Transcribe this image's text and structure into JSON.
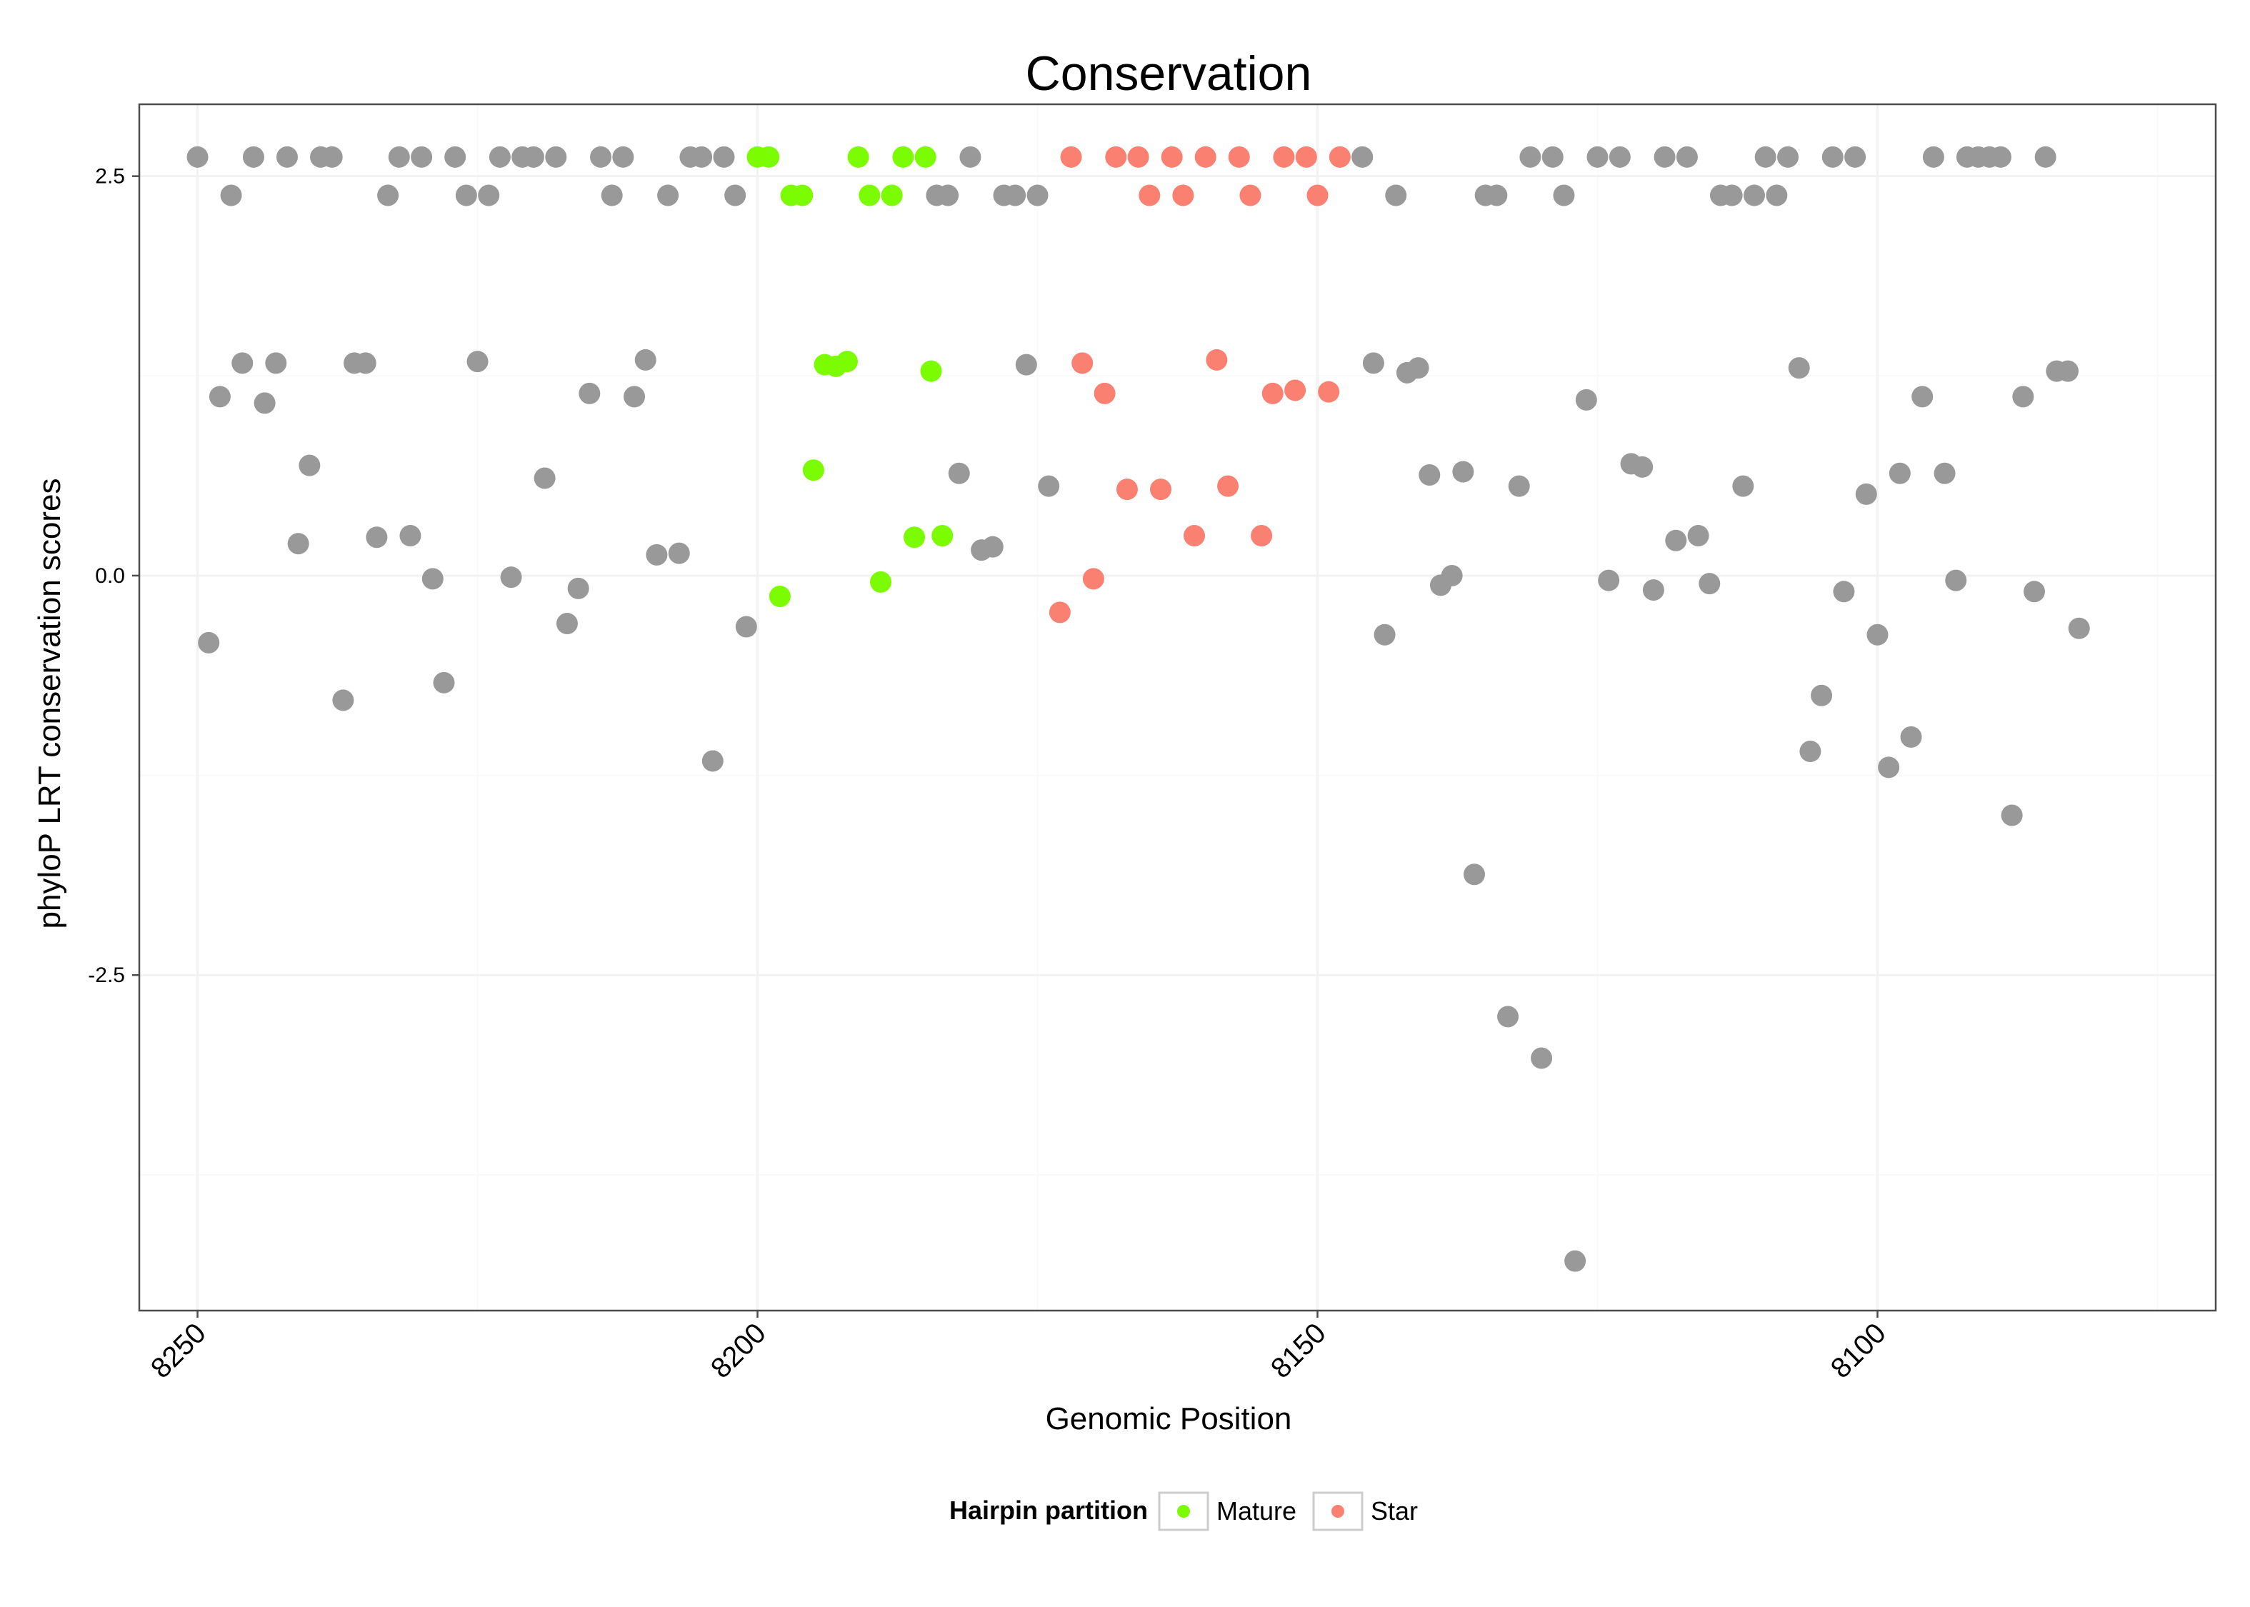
{
  "chart_data": {
    "type": "scatter",
    "title": "Conservation",
    "xlabel": "Genomic Position",
    "ylabel": "phyloP LRT conservation scores",
    "x_reversed": true,
    "xlim": [
      8255.2,
      8069.8
    ],
    "ylim": [
      -4.6,
      2.95
    ],
    "x_ticks": [
      8250,
      8200,
      8150,
      8100
    ],
    "x_tick_labels": [
      "8250",
      "8200",
      "8150",
      "8100"
    ],
    "y_ticks": [
      2.5,
      0.0,
      -2.5
    ],
    "y_tick_labels": [
      "2.5",
      "0.0",
      "-2.5"
    ],
    "grid": true,
    "theme": "bw",
    "legend": {
      "title": "Hairpin partition",
      "position": "bottom",
      "entries": [
        {
          "label": "Mature",
          "color": "#7CFC00"
        },
        {
          "label": "Star",
          "color": "#FA8072"
        }
      ]
    },
    "other_color": "#999999",
    "series": [
      {
        "name": "",
        "group": "other",
        "color": "#999999",
        "points": [
          [
            8250,
            2.62
          ],
          [
            8249,
            -0.42
          ],
          [
            8248,
            1.12
          ],
          [
            8247,
            2.38
          ],
          [
            8246,
            1.33
          ],
          [
            8245,
            2.62
          ],
          [
            8244,
            1.08
          ],
          [
            8243,
            1.33
          ],
          [
            8242,
            2.62
          ],
          [
            8241,
            0.2
          ],
          [
            8240,
            0.69
          ],
          [
            8239,
            2.62
          ],
          [
            8238,
            2.62
          ],
          [
            8237,
            -0.78
          ],
          [
            8236,
            1.33
          ],
          [
            8235,
            1.33
          ],
          [
            8234,
            0.24
          ],
          [
            8233,
            2.38
          ],
          [
            8232,
            2.62
          ],
          [
            8231,
            0.25
          ],
          [
            8230,
            2.62
          ],
          [
            8229,
            -0.02
          ],
          [
            8228,
            -0.67
          ],
          [
            8227,
            2.62
          ],
          [
            8226,
            2.38
          ],
          [
            8225,
            1.34
          ],
          [
            8224,
            2.38
          ],
          [
            8223,
            2.62
          ],
          [
            8222,
            -0.01
          ],
          [
            8221,
            2.62
          ],
          [
            8220,
            2.62
          ],
          [
            8219,
            0.61
          ],
          [
            8218,
            2.62
          ],
          [
            8217,
            -0.3
          ],
          [
            8216,
            -0.08
          ],
          [
            8215,
            1.14
          ],
          [
            8214,
            2.62
          ],
          [
            8213,
            2.38
          ],
          [
            8212,
            2.62
          ],
          [
            8211,
            1.12
          ],
          [
            8210,
            1.35
          ],
          [
            8209,
            0.13
          ],
          [
            8208,
            2.38
          ],
          [
            8207,
            0.14
          ],
          [
            8206,
            2.62
          ],
          [
            8205,
            2.62
          ],
          [
            8204,
            -1.16
          ],
          [
            8203,
            2.62
          ],
          [
            8202,
            2.38
          ],
          [
            8201,
            -0.32
          ],
          [
            8184,
            2.38
          ],
          [
            8183,
            2.38
          ],
          [
            8182,
            0.64
          ],
          [
            8181,
            2.62
          ],
          [
            8180,
            0.16
          ],
          [
            8179,
            0.18
          ],
          [
            8178,
            2.38
          ],
          [
            8177,
            2.38
          ],
          [
            8176,
            1.32
          ],
          [
            8175,
            2.38
          ],
          [
            8174,
            0.56
          ],
          [
            8146,
            2.62
          ],
          [
            8145,
            1.33
          ],
          [
            8144,
            -0.37
          ],
          [
            8143,
            2.38
          ],
          [
            8142,
            1.27
          ],
          [
            8141,
            1.3
          ],
          [
            8140,
            0.63
          ],
          [
            8139,
            -0.06
          ],
          [
            8138,
            0.0
          ],
          [
            8137,
            0.65
          ],
          [
            8136,
            -1.87
          ],
          [
            8135,
            2.38
          ],
          [
            8134,
            2.38
          ],
          [
            8133,
            -2.76
          ],
          [
            8132,
            0.56
          ],
          [
            8131,
            2.62
          ],
          [
            8130,
            -3.02
          ],
          [
            8129,
            2.62
          ],
          [
            8128,
            2.38
          ],
          [
            8127,
            -4.29
          ],
          [
            8126,
            1.1
          ],
          [
            8125,
            2.62
          ],
          [
            8124,
            -0.03
          ],
          [
            8123,
            2.62
          ],
          [
            8122,
            0.7
          ],
          [
            8121,
            0.68
          ],
          [
            8120,
            -0.09
          ],
          [
            8119,
            2.62
          ],
          [
            8118,
            0.22
          ],
          [
            8117,
            2.62
          ],
          [
            8116,
            0.25
          ],
          [
            8115,
            -0.05
          ],
          [
            8114,
            2.38
          ],
          [
            8113,
            2.38
          ],
          [
            8112,
            0.56
          ],
          [
            8111,
            2.38
          ],
          [
            8110,
            2.62
          ],
          [
            8109,
            2.38
          ],
          [
            8108,
            2.62
          ],
          [
            8107,
            1.3
          ],
          [
            8106,
            -1.1
          ],
          [
            8105,
            -0.75
          ],
          [
            8104,
            2.62
          ],
          [
            8103,
            -0.1
          ],
          [
            8102,
            2.62
          ],
          [
            8101,
            0.51
          ],
          [
            8100,
            -0.37
          ],
          [
            8099,
            -1.2
          ],
          [
            8098,
            0.64
          ],
          [
            8097,
            -1.01
          ],
          [
            8096,
            1.12
          ],
          [
            8095,
            2.62
          ],
          [
            8094,
            0.64
          ],
          [
            8093,
            -0.03
          ],
          [
            8092,
            2.62
          ],
          [
            8091,
            2.62
          ],
          [
            8090,
            2.62
          ],
          [
            8089,
            2.62
          ],
          [
            8088,
            -1.5
          ],
          [
            8087,
            1.12
          ],
          [
            8086,
            -0.1
          ],
          [
            8085,
            2.62
          ],
          [
            8084,
            1.28
          ],
          [
            8083,
            1.28
          ],
          [
            8082,
            -0.33
          ]
        ]
      },
      {
        "name": "Mature",
        "group": "Mature",
        "color": "#7CFC00",
        "points": [
          [
            8200,
            2.62
          ],
          [
            8199,
            2.62
          ],
          [
            8198,
            -0.13
          ],
          [
            8197,
            2.38
          ],
          [
            8196,
            2.38
          ],
          [
            8195,
            0.66
          ],
          [
            8194,
            1.32
          ],
          [
            8193,
            1.31
          ],
          [
            8192,
            1.34
          ],
          [
            8191,
            2.62
          ],
          [
            8190,
            2.38
          ],
          [
            8189,
            -0.04
          ],
          [
            8188,
            2.38
          ],
          [
            8187,
            2.62
          ],
          [
            8186,
            0.24
          ],
          [
            8185,
            2.62
          ],
          [
            8184.5,
            1.28
          ],
          [
            8183.5,
            0.25
          ]
        ]
      },
      {
        "name": "Star",
        "group": "Star",
        "color": "#FA8072",
        "points": [
          [
            8173,
            -0.23
          ],
          [
            8172,
            2.62
          ],
          [
            8171,
            1.33
          ],
          [
            8170,
            -0.02
          ],
          [
            8169,
            1.14
          ],
          [
            8168,
            2.62
          ],
          [
            8167,
            0.54
          ],
          [
            8166,
            2.62
          ],
          [
            8165,
            2.38
          ],
          [
            8164,
            0.54
          ],
          [
            8163,
            2.62
          ],
          [
            8162,
            2.38
          ],
          [
            8161,
            0.25
          ],
          [
            8160,
            2.62
          ],
          [
            8159,
            1.35
          ],
          [
            8158,
            0.56
          ],
          [
            8157,
            2.62
          ],
          [
            8156,
            2.38
          ],
          [
            8155,
            0.25
          ],
          [
            8154,
            1.14
          ],
          [
            8153,
            2.62
          ],
          [
            8152,
            1.16
          ],
          [
            8151,
            2.62
          ],
          [
            8150,
            2.38
          ],
          [
            8149,
            1.15
          ],
          [
            8148,
            2.62
          ]
        ]
      }
    ]
  }
}
